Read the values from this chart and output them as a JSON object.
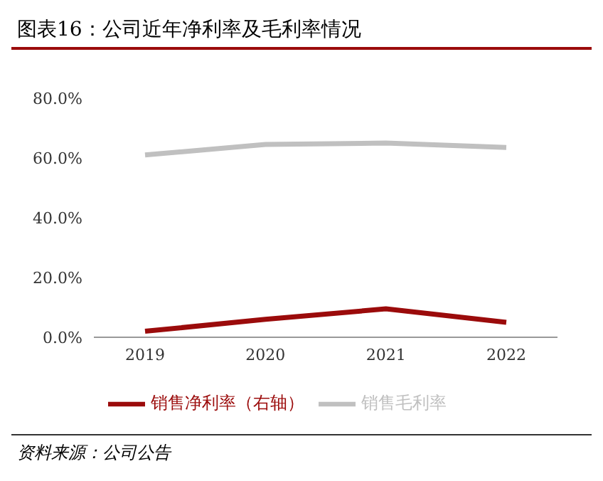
{
  "chart_data": {
    "type": "line",
    "title": "图表16：公司近年净利率及毛利率情况",
    "categories": [
      "2019",
      "2020",
      "2021",
      "2022"
    ],
    "series": [
      {
        "name": "销售净利率（右轴）",
        "color": "#9b0b0b",
        "values": [
          2,
          6,
          9.5,
          5
        ]
      },
      {
        "name": "销售毛利率",
        "color": "#c0c0c0",
        "values": [
          61,
          64.5,
          65,
          63.5
        ]
      }
    ],
    "ylim": [
      0,
      80
    ],
    "yticks": [
      {
        "value": 0,
        "label": "0.0%"
      },
      {
        "value": 20,
        "label": "20.0%"
      },
      {
        "value": 40,
        "label": "40.0%"
      },
      {
        "value": 60,
        "label": "60.0%"
      },
      {
        "value": 80,
        "label": "80.0%"
      }
    ],
    "grid": false,
    "legend": "bottom",
    "marker": "none",
    "line_style": "solid",
    "annotations": [
      "资料来源：公司公告"
    ]
  }
}
